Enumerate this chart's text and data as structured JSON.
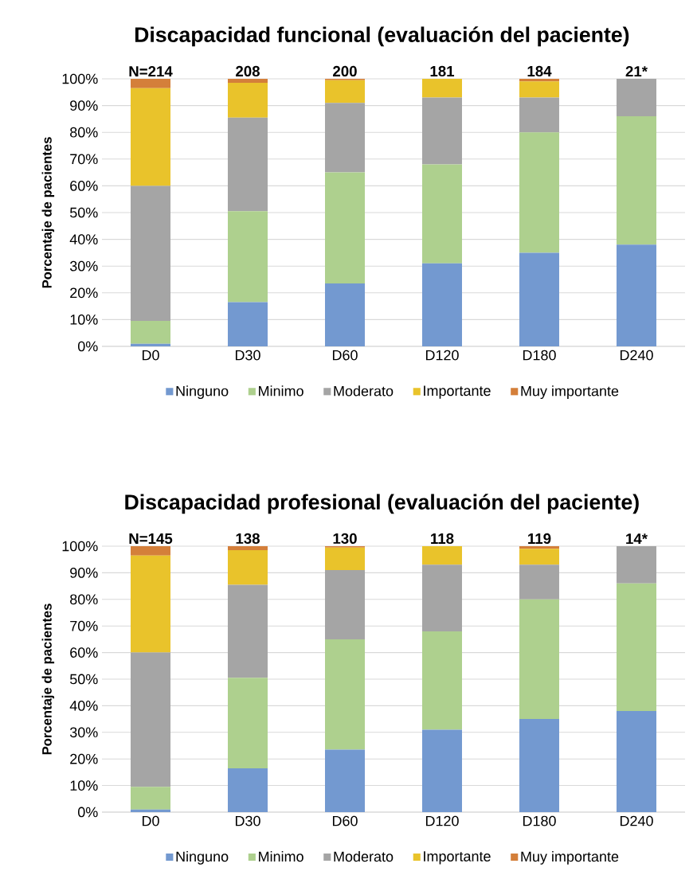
{
  "chart_data": [
    {
      "type": "bar",
      "stacked": true,
      "title": "Discapacidad funcional (evaluación del paciente)",
      "ylabel": "Porcentaje de pacientes",
      "categories": [
        "D0",
        "D30",
        "D60",
        "D120",
        "D180",
        "D240"
      ],
      "series": [
        {
          "name": "Ninguno",
          "color": "#7399d0",
          "values": [
            1,
            16.5,
            23.5,
            31,
            35,
            38
          ]
        },
        {
          "name": "Minimo",
          "color": "#aed08e",
          "values": [
            8.5,
            34,
            41.5,
            37,
            45,
            48
          ]
        },
        {
          "name": "Moderato",
          "color": "#a5a5a5",
          "values": [
            50.5,
            35,
            26,
            25,
            13,
            14
          ]
        },
        {
          "name": "Importante",
          "color": "#e9c32b",
          "values": [
            36.5,
            13,
            8.5,
            7,
            6,
            0
          ]
        },
        {
          "name": "Muy importante",
          "color": "#d47f3a",
          "values": [
            3.5,
            1.5,
            0.5,
            0,
            1,
            0
          ]
        }
      ],
      "ylim": [
        0,
        100
      ],
      "yticks": [
        {
          "value": 0,
          "label": "0%"
        },
        {
          "value": 10,
          "label": "10%"
        },
        {
          "value": 20,
          "label": "20%"
        },
        {
          "value": 30,
          "label": "30%"
        },
        {
          "value": 40,
          "label": "40%"
        },
        {
          "value": 50,
          "label": "50%"
        },
        {
          "value": 60,
          "label": "60%"
        },
        {
          "value": 70,
          "label": "70%"
        },
        {
          "value": 80,
          "label": "80%"
        },
        {
          "value": 90,
          "label": "90%"
        },
        {
          "value": 100,
          "label": "100%"
        }
      ],
      "grid": "y",
      "legend": "bottom",
      "annotations": [
        {
          "text": "N=214",
          "x": "D0",
          "y": 100
        },
        {
          "text": "208",
          "x": "D30",
          "y": 100
        },
        {
          "text": "200",
          "x": "D60",
          "y": 100
        },
        {
          "text": "181",
          "x": "D120",
          "y": 100
        },
        {
          "text": "184",
          "x": "D180",
          "y": 100
        },
        {
          "text": "21*",
          "x": "D240",
          "y": 100
        }
      ]
    },
    {
      "type": "bar",
      "stacked": true,
      "title": "Discapacidad profesional (evaluación del paciente)",
      "ylabel": "Porcentaje de pacientes",
      "categories": [
        "D0",
        "D30",
        "D60",
        "D120",
        "D180",
        "D240"
      ],
      "series": [
        {
          "name": "Ninguno",
          "color": "#7399d0",
          "values": [
            1,
            16.5,
            23.5,
            31,
            35,
            38
          ]
        },
        {
          "name": "Minimo",
          "color": "#aed08e",
          "values": [
            8.5,
            34,
            41.5,
            37,
            45,
            48
          ]
        },
        {
          "name": "Moderato",
          "color": "#a5a5a5",
          "values": [
            50.5,
            35,
            26,
            25,
            13,
            14
          ]
        },
        {
          "name": "Importante",
          "color": "#e9c32b",
          "values": [
            36.5,
            13,
            8.5,
            7,
            6,
            0
          ]
        },
        {
          "name": "Muy importante",
          "color": "#d47f3a",
          "values": [
            3.5,
            1.5,
            0.5,
            0,
            1,
            0
          ]
        }
      ],
      "ylim": [
        0,
        100
      ],
      "yticks": [
        {
          "value": 0,
          "label": "0%"
        },
        {
          "value": 10,
          "label": "10%"
        },
        {
          "value": 20,
          "label": "20%"
        },
        {
          "value": 30,
          "label": "30%"
        },
        {
          "value": 40,
          "label": "40%"
        },
        {
          "value": 50,
          "label": "50%"
        },
        {
          "value": 60,
          "label": "60%"
        },
        {
          "value": 70,
          "label": "70%"
        },
        {
          "value": 80,
          "label": "80%"
        },
        {
          "value": 90,
          "label": "90%"
        },
        {
          "value": 100,
          "label": "100%"
        }
      ],
      "grid": "y",
      "legend": "bottom",
      "annotations": [
        {
          "text": "N=145",
          "x": "D0",
          "y": 100
        },
        {
          "text": "138",
          "x": "D30",
          "y": 100
        },
        {
          "text": "130",
          "x": "D60",
          "y": 100
        },
        {
          "text": "118",
          "x": "D120",
          "y": 100
        },
        {
          "text": "119",
          "x": "D180",
          "y": 100
        },
        {
          "text": "14*",
          "x": "D240",
          "y": 100
        }
      ]
    }
  ]
}
